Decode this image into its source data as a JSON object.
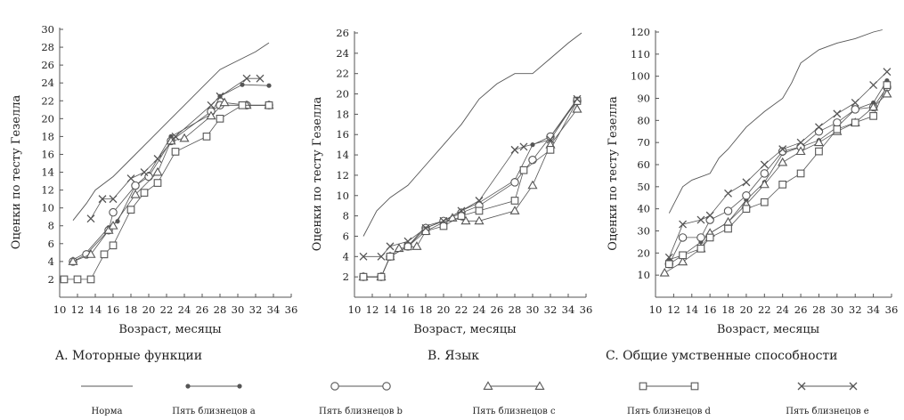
{
  "chart_data": [
    {
      "type": "line",
      "caption": "A. Моторные функции",
      "xlabel": "Возраст, месяцы",
      "ylabel": "Оценки по тесту Гезелла",
      "xlim": [
        10,
        36
      ],
      "ylim": [
        0,
        30
      ],
      "xticks": [
        "10",
        "12",
        "14",
        "16",
        "18",
        "20",
        "22",
        "24",
        "26",
        "28",
        "30",
        "32",
        "34",
        "36"
      ],
      "yticks": [
        "2",
        "4",
        "6",
        "8",
        "10",
        "12",
        "14",
        "16",
        "18",
        "20",
        "22",
        "24",
        "26",
        "28",
        "30"
      ],
      "series": [
        {
          "key": "norm",
          "x": [
            11.5,
            13,
            14,
            16,
            18,
            20,
            22,
            24,
            26,
            28,
            30,
            32,
            33.5
          ],
          "y": [
            8.6,
            10.5,
            12,
            13.5,
            15.5,
            17.5,
            19.5,
            21.5,
            23.5,
            25.5,
            26.5,
            27.5,
            28.5
          ]
        },
        {
          "key": "a",
          "x": [
            11.5,
            13,
            15.5,
            16.5,
            18.5,
            20,
            22.5,
            27,
            28,
            30.5,
            33.5
          ],
          "y": [
            4.2,
            5,
            7.8,
            8.5,
            12.5,
            13.8,
            18,
            20.5,
            22.5,
            23.8,
            23.7
          ]
        },
        {
          "key": "b",
          "x": [
            11.5,
            13,
            15.5,
            16,
            18.5,
            20,
            22.5,
            27,
            28,
            31,
            33.5
          ],
          "y": [
            4,
            4.8,
            7.5,
            9.5,
            12.5,
            13.5,
            17.5,
            20.8,
            21.5,
            21.5,
            21.5
          ]
        },
        {
          "key": "c",
          "x": [
            11.5,
            13.5,
            15.5,
            16,
            18.5,
            21,
            22.5,
            24,
            27,
            28.5,
            31,
            33.5
          ],
          "y": [
            4,
            4.8,
            7.5,
            8,
            11.5,
            14,
            17.5,
            17.8,
            20.3,
            21.8,
            21.5,
            21.5
          ]
        },
        {
          "key": "d",
          "x": [
            10.5,
            12,
            13.5,
            15,
            16,
            18,
            19.5,
            21,
            23,
            26.5,
            28,
            30.5,
            33.5
          ],
          "y": [
            2,
            2,
            2,
            4.8,
            5.8,
            9.8,
            11.7,
            12.8,
            16.3,
            18,
            20,
            21.5,
            21.5
          ]
        },
        {
          "key": "e",
          "x": [
            13.5,
            14.8,
            16,
            18,
            19.5,
            21,
            23,
            27,
            28,
            31,
            32.5
          ],
          "y": [
            8.8,
            11,
            11,
            13.3,
            14,
            15.5,
            18,
            21.5,
            22.5,
            24.5,
            24.5
          ]
        }
      ]
    },
    {
      "type": "line",
      "caption": "B. Язык",
      "xlabel": "Возраст, месяцы",
      "ylabel": "Оценки по тесту Гезелла",
      "xlim": [
        10,
        36
      ],
      "ylim": [
        0,
        26
      ],
      "xticks": [
        "10",
        "12",
        "14",
        "16",
        "18",
        "20",
        "22",
        "24",
        "26",
        "28",
        "30",
        "32",
        "34",
        "36"
      ],
      "yticks": [
        "2",
        "4",
        "6",
        "8",
        "10",
        "12",
        "14",
        "16",
        "18",
        "20",
        "22",
        "24",
        "26"
      ],
      "series": [
        {
          "key": "norm",
          "x": [
            11,
            12.5,
            14,
            16,
            18,
            20,
            22,
            24,
            26,
            28,
            30,
            32,
            34,
            35.5
          ],
          "y": [
            6,
            8.5,
            9.8,
            11,
            13,
            15,
            17,
            19.5,
            21,
            22,
            22,
            23.5,
            25,
            26
          ]
        },
        {
          "key": "a",
          "x": [
            11,
            13,
            14,
            16,
            18,
            20,
            22,
            24,
            28,
            30,
            32,
            35
          ],
          "y": [
            2,
            2,
            4,
            5,
            7,
            7.5,
            8.5,
            9.3,
            11.5,
            15,
            15.8,
            19.5
          ]
        },
        {
          "key": "b",
          "x": [
            11,
            13,
            14,
            16,
            18,
            20,
            22,
            24,
            28,
            30,
            32,
            35
          ],
          "y": [
            2,
            2,
            4,
            5,
            6.8,
            7.5,
            8.3,
            9,
            11.3,
            13.5,
            15.8,
            19.3
          ]
        },
        {
          "key": "c",
          "x": [
            11,
            13,
            14,
            15,
            17,
            18,
            21,
            22.5,
            24,
            28,
            30,
            32,
            35
          ],
          "y": [
            2,
            2,
            4,
            4.8,
            5,
            6.5,
            7.8,
            7.5,
            7.5,
            8.5,
            11,
            15,
            18.5
          ]
        },
        {
          "key": "d",
          "x": [
            11,
            13,
            14,
            16,
            18,
            20,
            22,
            24,
            28,
            29,
            32,
            35
          ],
          "y": [
            2,
            2,
            4,
            5,
            6.5,
            7,
            8,
            8.5,
            9.5,
            12.5,
            14.5,
            19.3
          ]
        },
        {
          "key": "e",
          "x": [
            11,
            13,
            14,
            16,
            18,
            20,
            22,
            24,
            28,
            29,
            32,
            35
          ],
          "y": [
            4,
            4,
            5,
            5.5,
            6.8,
            7.5,
            8.5,
            9.5,
            14.5,
            14.8,
            15.5,
            19.5
          ]
        }
      ]
    },
    {
      "type": "line",
      "caption": "C. Общие умственные способности",
      "xlabel": "Возраст, месяцы",
      "ylabel": "Оценки по тесту Гезелла",
      "xlim": [
        10,
        36
      ],
      "ylim": [
        0,
        120
      ],
      "xticks": [
        "10",
        "12",
        "14",
        "16",
        "18",
        "20",
        "22",
        "24",
        "26",
        "28",
        "30",
        "32",
        "34",
        "36"
      ],
      "yticks": [
        "10",
        "20",
        "30",
        "40",
        "50",
        "60",
        "70",
        "80",
        "90",
        "100",
        "110",
        "120"
      ],
      "series": [
        {
          "key": "norm",
          "x": [
            11.5,
            13,
            14,
            16,
            17,
            18,
            20,
            22,
            24,
            25,
            26,
            28,
            30,
            32,
            34,
            35
          ],
          "y": [
            38,
            50,
            53,
            56,
            63,
            67,
            77,
            84,
            90,
            97,
            106,
            112,
            115,
            117,
            120,
            121
          ]
        },
        {
          "key": "a",
          "x": [
            11.5,
            13,
            15,
            16,
            18,
            20,
            22,
            24,
            26,
            28,
            30,
            32,
            34,
            35.5
          ],
          "y": [
            17,
            19,
            25,
            29,
            34,
            44,
            52,
            65,
            68,
            71,
            77,
            85,
            88,
            98
          ]
        },
        {
          "key": "b",
          "x": [
            11.5,
            13,
            15,
            16,
            18,
            20,
            22,
            24,
            26,
            28,
            30,
            32,
            34,
            35.5
          ],
          "y": [
            15,
            27,
            27,
            35,
            39,
            46,
            56,
            66,
            68,
            75,
            79,
            85,
            86,
            95
          ]
        },
        {
          "key": "c",
          "x": [
            11,
            13,
            15,
            16,
            18,
            20,
            22,
            24,
            26,
            28,
            30,
            32,
            34,
            35.5
          ],
          "y": [
            11,
            16,
            22,
            29,
            34,
            42,
            51,
            61,
            66,
            70,
            75,
            79,
            86,
            92
          ]
        },
        {
          "key": "d",
          "x": [
            11.5,
            13,
            15,
            16,
            18,
            20,
            22,
            24,
            26,
            28,
            30,
            32,
            34,
            35.5
          ],
          "y": [
            15,
            19,
            22,
            27,
            31,
            40,
            43,
            51,
            56,
            66,
            76,
            79,
            82,
            96
          ]
        },
        {
          "key": "e",
          "x": [
            11.5,
            13,
            15,
            16,
            18,
            20,
            22,
            24,
            26,
            28,
            30,
            32,
            34,
            35.5
          ],
          "y": [
            18,
            33,
            35,
            37,
            47,
            52,
            60,
            67,
            70,
            77,
            83,
            88,
            96,
            102
          ]
        }
      ]
    }
  ],
  "legend": [
    {
      "key": "norm",
      "label": "Норма",
      "marker": "none"
    },
    {
      "key": "a",
      "label": "Пять близнецов a",
      "marker": "dot"
    },
    {
      "key": "b",
      "label": "Пять близнецов b",
      "marker": "circle"
    },
    {
      "key": "c",
      "label": "Пять близнецов c",
      "marker": "triangle"
    },
    {
      "key": "d",
      "label": "Пять близнецов d",
      "marker": "square"
    },
    {
      "key": "e",
      "label": "Пять близнецов e",
      "marker": "cross"
    }
  ],
  "colors": {
    "line": "#555555",
    "text": "#222222",
    "background": "#ffffff"
  }
}
